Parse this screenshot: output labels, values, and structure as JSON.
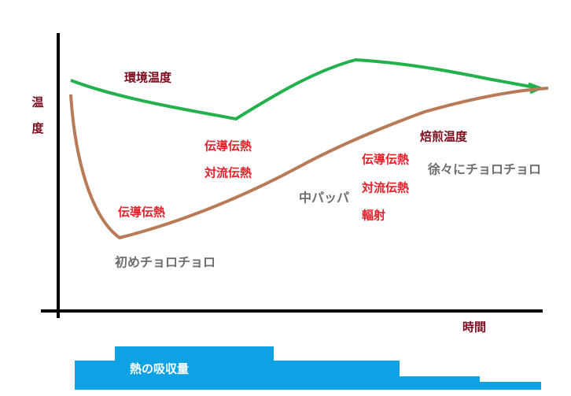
{
  "axes": {
    "y_label": "温度",
    "x_label": "時間"
  },
  "curves": {
    "ambient": "環境温度",
    "roast": "焙煎温度"
  },
  "phases": [
    {
      "heat": [
        "伝導伝熱"
      ],
      "fire": "初めチョロチョロ"
    },
    {
      "heat": [
        "伝導伝熱",
        "対流伝熱"
      ],
      "fire": "中パッパ"
    },
    {
      "heat": [
        "伝導伝熱",
        "対流伝熱",
        "輻射"
      ],
      "fire": "徐々にチョロチョロ"
    }
  ],
  "absorption": {
    "label": "熱の吸収量"
  }
}
